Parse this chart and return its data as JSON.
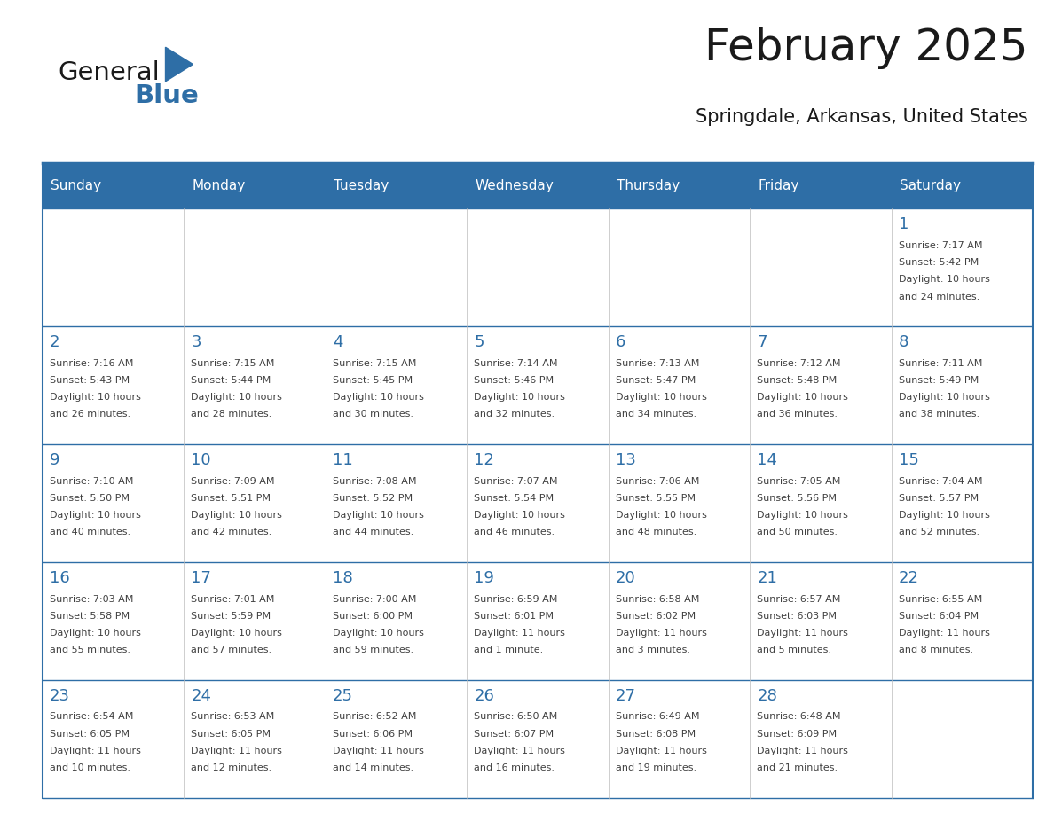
{
  "title": "February 2025",
  "subtitle": "Springdale, Arkansas, United States",
  "header_bg": "#2E6EA6",
  "header_text_color": "#FFFFFF",
  "cell_bg_white": "#FFFFFF",
  "day_number_color": "#2E6EA6",
  "info_text_color": "#404040",
  "border_color": "#2E6EA6",
  "days_of_week": [
    "Sunday",
    "Monday",
    "Tuesday",
    "Wednesday",
    "Thursday",
    "Friday",
    "Saturday"
  ],
  "weeks": [
    [
      {
        "day": null,
        "sunrise": null,
        "sunset": null,
        "daylight": null
      },
      {
        "day": null,
        "sunrise": null,
        "sunset": null,
        "daylight": null
      },
      {
        "day": null,
        "sunrise": null,
        "sunset": null,
        "daylight": null
      },
      {
        "day": null,
        "sunrise": null,
        "sunset": null,
        "daylight": null
      },
      {
        "day": null,
        "sunrise": null,
        "sunset": null,
        "daylight": null
      },
      {
        "day": null,
        "sunrise": null,
        "sunset": null,
        "daylight": null
      },
      {
        "day": 1,
        "sunrise": "7:17 AM",
        "sunset": "5:42 PM",
        "daylight": "10 hours\nand 24 minutes."
      }
    ],
    [
      {
        "day": 2,
        "sunrise": "7:16 AM",
        "sunset": "5:43 PM",
        "daylight": "10 hours\nand 26 minutes."
      },
      {
        "day": 3,
        "sunrise": "7:15 AM",
        "sunset": "5:44 PM",
        "daylight": "10 hours\nand 28 minutes."
      },
      {
        "day": 4,
        "sunrise": "7:15 AM",
        "sunset": "5:45 PM",
        "daylight": "10 hours\nand 30 minutes."
      },
      {
        "day": 5,
        "sunrise": "7:14 AM",
        "sunset": "5:46 PM",
        "daylight": "10 hours\nand 32 minutes."
      },
      {
        "day": 6,
        "sunrise": "7:13 AM",
        "sunset": "5:47 PM",
        "daylight": "10 hours\nand 34 minutes."
      },
      {
        "day": 7,
        "sunrise": "7:12 AM",
        "sunset": "5:48 PM",
        "daylight": "10 hours\nand 36 minutes."
      },
      {
        "day": 8,
        "sunrise": "7:11 AM",
        "sunset": "5:49 PM",
        "daylight": "10 hours\nand 38 minutes."
      }
    ],
    [
      {
        "day": 9,
        "sunrise": "7:10 AM",
        "sunset": "5:50 PM",
        "daylight": "10 hours\nand 40 minutes."
      },
      {
        "day": 10,
        "sunrise": "7:09 AM",
        "sunset": "5:51 PM",
        "daylight": "10 hours\nand 42 minutes."
      },
      {
        "day": 11,
        "sunrise": "7:08 AM",
        "sunset": "5:52 PM",
        "daylight": "10 hours\nand 44 minutes."
      },
      {
        "day": 12,
        "sunrise": "7:07 AM",
        "sunset": "5:54 PM",
        "daylight": "10 hours\nand 46 minutes."
      },
      {
        "day": 13,
        "sunrise": "7:06 AM",
        "sunset": "5:55 PM",
        "daylight": "10 hours\nand 48 minutes."
      },
      {
        "day": 14,
        "sunrise": "7:05 AM",
        "sunset": "5:56 PM",
        "daylight": "10 hours\nand 50 minutes."
      },
      {
        "day": 15,
        "sunrise": "7:04 AM",
        "sunset": "5:57 PM",
        "daylight": "10 hours\nand 52 minutes."
      }
    ],
    [
      {
        "day": 16,
        "sunrise": "7:03 AM",
        "sunset": "5:58 PM",
        "daylight": "10 hours\nand 55 minutes."
      },
      {
        "day": 17,
        "sunrise": "7:01 AM",
        "sunset": "5:59 PM",
        "daylight": "10 hours\nand 57 minutes."
      },
      {
        "day": 18,
        "sunrise": "7:00 AM",
        "sunset": "6:00 PM",
        "daylight": "10 hours\nand 59 minutes."
      },
      {
        "day": 19,
        "sunrise": "6:59 AM",
        "sunset": "6:01 PM",
        "daylight": "11 hours\nand 1 minute."
      },
      {
        "day": 20,
        "sunrise": "6:58 AM",
        "sunset": "6:02 PM",
        "daylight": "11 hours\nand 3 minutes."
      },
      {
        "day": 21,
        "sunrise": "6:57 AM",
        "sunset": "6:03 PM",
        "daylight": "11 hours\nand 5 minutes."
      },
      {
        "day": 22,
        "sunrise": "6:55 AM",
        "sunset": "6:04 PM",
        "daylight": "11 hours\nand 8 minutes."
      }
    ],
    [
      {
        "day": 23,
        "sunrise": "6:54 AM",
        "sunset": "6:05 PM",
        "daylight": "11 hours\nand 10 minutes."
      },
      {
        "day": 24,
        "sunrise": "6:53 AM",
        "sunset": "6:05 PM",
        "daylight": "11 hours\nand 12 minutes."
      },
      {
        "day": 25,
        "sunrise": "6:52 AM",
        "sunset": "6:06 PM",
        "daylight": "11 hours\nand 14 minutes."
      },
      {
        "day": 26,
        "sunrise": "6:50 AM",
        "sunset": "6:07 PM",
        "daylight": "11 hours\nand 16 minutes."
      },
      {
        "day": 27,
        "sunrise": "6:49 AM",
        "sunset": "6:08 PM",
        "daylight": "11 hours\nand 19 minutes."
      },
      {
        "day": 28,
        "sunrise": "6:48 AM",
        "sunset": "6:09 PM",
        "daylight": "11 hours\nand 21 minutes."
      },
      {
        "day": null,
        "sunrise": null,
        "sunset": null,
        "daylight": null
      }
    ]
  ],
  "logo_text1": "General",
  "logo_text2": "Blue",
  "logo_color1": "#1a1a1a",
  "logo_color2": "#2E6EA6",
  "logo_triangle_color": "#2E6EA6"
}
